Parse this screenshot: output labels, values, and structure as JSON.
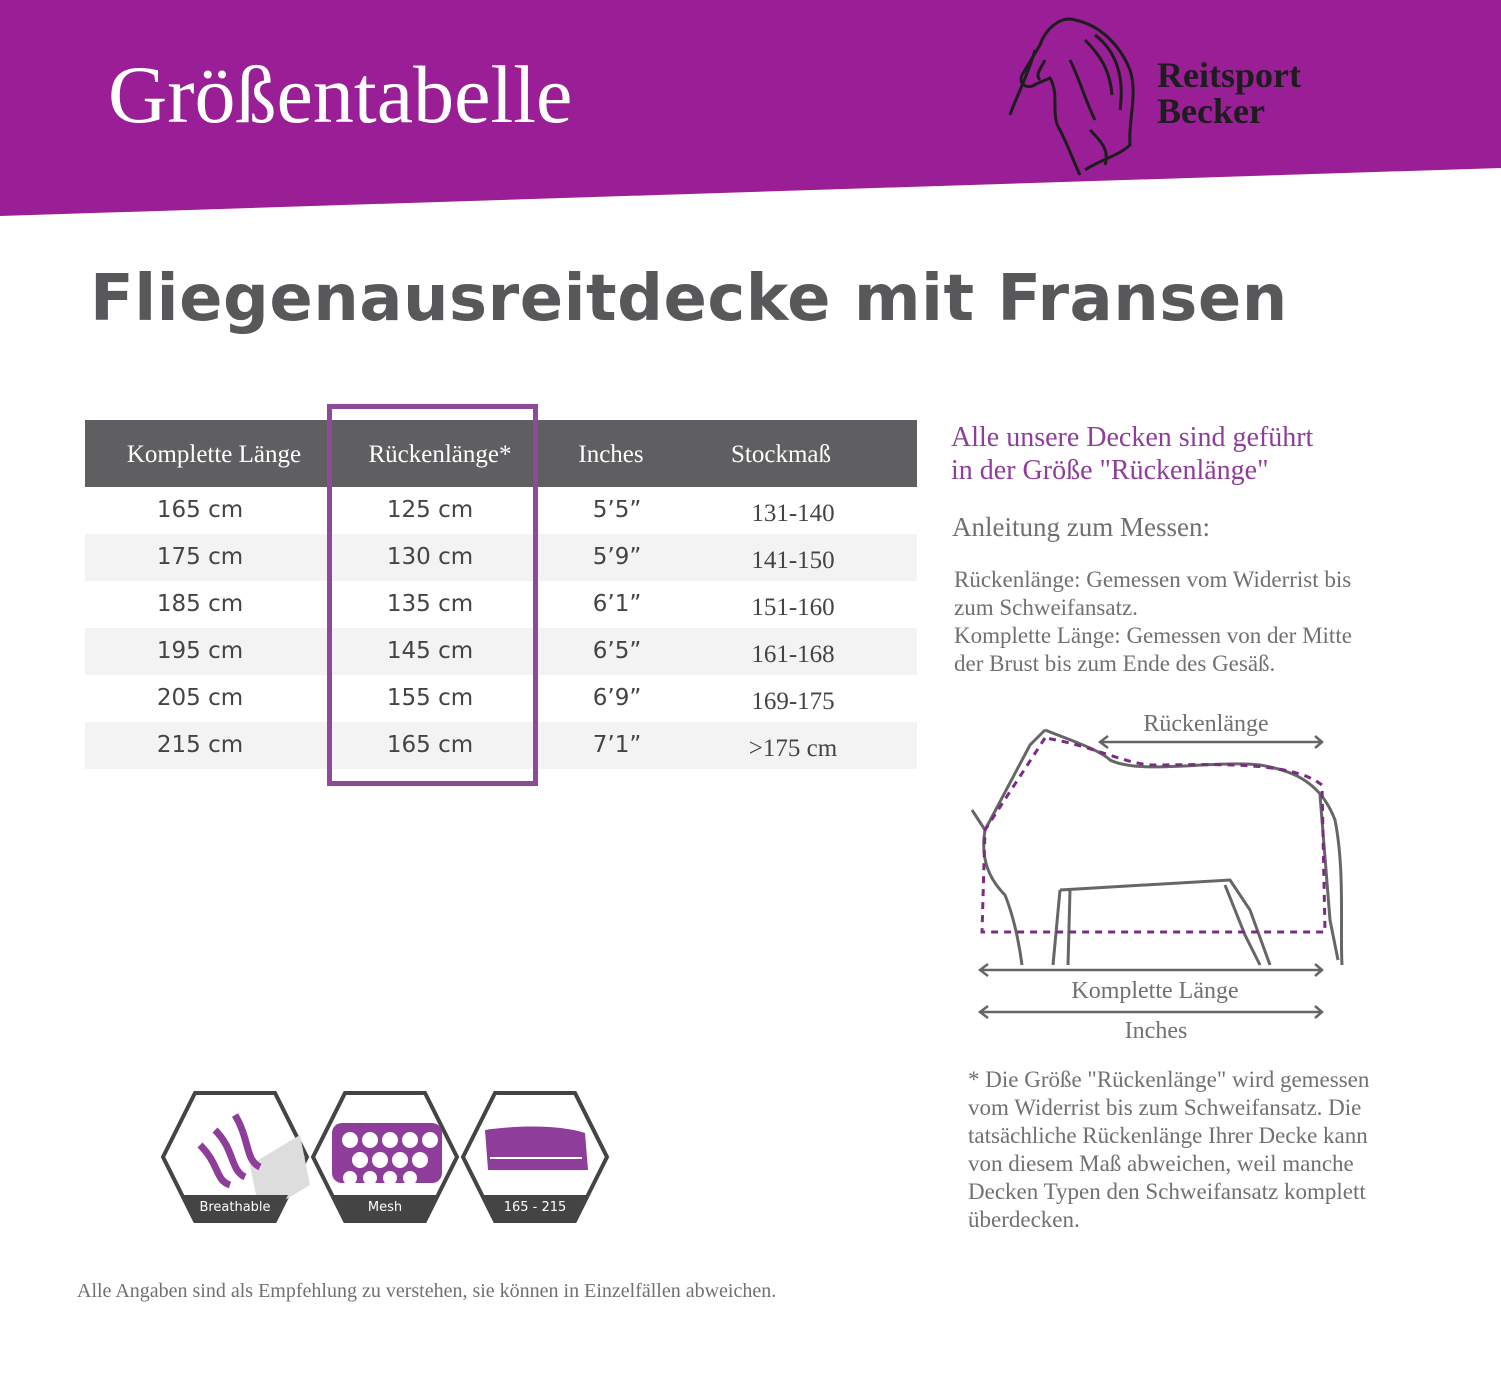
{
  "header": {
    "title": "Größentabelle",
    "brand": [
      "Reitsport",
      "Becker"
    ]
  },
  "product_title": "Fliegenausreitdecke mit Fransen",
  "table": {
    "headers": [
      "Komplette Länge",
      "Rückenlänge*",
      "Inches",
      "Stockmaß"
    ],
    "rows": [
      [
        "165 cm",
        "125 cm",
        "5’5”",
        "131-140"
      ],
      [
        "175 cm",
        "130 cm",
        "5’9”",
        "141-150"
      ],
      [
        "185 cm",
        "135 cm",
        "6’1”",
        "151-160"
      ],
      [
        "195 cm",
        "145 cm",
        "6’5”",
        "161-168"
      ],
      [
        "205 cm",
        "155 cm",
        "6’9”",
        "169-175"
      ],
      [
        "215 cm",
        "165 cm",
        "7’1”",
        ">175 cm"
      ]
    ]
  },
  "info": {
    "note": [
      "Alle unsere Decken sind geführt",
      "in der Größe \"Rückenlänge\""
    ],
    "measure_title": "Anleitung zum Messen:",
    "measure_text": [
      "Rückenlänge: Gemessen vom Widerrist bis",
      "zum Schweifansatz.",
      "Komplette Länge: Gemessen von der Mitte",
      "der Brust bis zum Ende des Gesäß."
    ],
    "diagram": {
      "back": "Rückenlänge",
      "total": "Komplette Länge",
      "inches": "Inches"
    },
    "footnote": [
      "* Die Größe \"Rückenlänge\" wird gemessen",
      "vom Widerrist bis zum Schweifansatz. Die",
      "tatsächliche Rückenlänge Ihrer Decke kann",
      "von diesem Maß abweichen, weil manche",
      "Decken Typen den Schweifansatz komplett",
      "überdecken."
    ]
  },
  "icons": [
    "Breathable",
    "Mesh",
    "165 - 215"
  ],
  "disclaimer": "Alle Angaben sind als Empfehlung zu verstehen, sie können in Einzelfällen abweichen."
}
